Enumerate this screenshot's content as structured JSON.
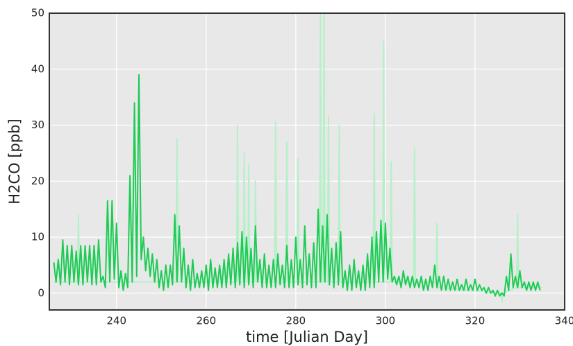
{
  "chart_data": {
    "type": "line",
    "xlabel": "time [Julian Day]",
    "ylabel": "H2CO [ppb]",
    "xlim": [
      225,
      340
    ],
    "ylim": [
      -3,
      50
    ],
    "xticks": [
      240,
      260,
      280,
      300,
      320,
      340
    ],
    "yticks": [
      0,
      10,
      20,
      30,
      40,
      50
    ],
    "grid": true,
    "series": [
      {
        "color": "#b5f0c8",
        "x": [
          226,
          231.3,
          231.5,
          231.7,
          253.3,
          253.5,
          253.7,
          266.8,
          267,
          267.2,
          268.3,
          268.5,
          268.7,
          269.3,
          269.5,
          269.7,
          270.8,
          271,
          271.2,
          275.3,
          275.5,
          275.7,
          277.8,
          278,
          278.2,
          280.3,
          280.5,
          280.7,
          285.3,
          285.5,
          285.7,
          286.1,
          286.3,
          286.5,
          287.1,
          287.3,
          287.5,
          289.5,
          289.7,
          289.9,
          297.3,
          297.5,
          297.7,
          299.4,
          299.6,
          299.8,
          301.1,
          301.3,
          301.5,
          306.3,
          306.5,
          306.7,
          311.3,
          311.5,
          311.7,
          325.8,
          326,
          326.2,
          329.3,
          329.5,
          329.7,
          335
        ],
        "values": [
          2,
          2,
          14,
          2,
          2,
          27.5,
          2,
          2,
          30,
          2,
          2,
          25,
          2,
          2,
          23,
          2,
          2,
          20,
          2,
          2,
          30.5,
          2,
          2,
          27,
          2,
          2,
          24,
          2,
          2,
          50,
          2,
          2,
          50,
          2,
          2,
          31.5,
          2,
          2,
          30,
          2,
          2,
          32,
          2,
          2,
          45,
          2,
          2,
          23.5,
          2,
          2,
          26,
          2,
          2,
          12.5,
          1,
          0,
          -1.5,
          0,
          1,
          14,
          1,
          1
        ]
      },
      {
        "color": "#1ecb55",
        "x": [
          226,
          226.5,
          227,
          227.5,
          228,
          228.5,
          229,
          229.5,
          230,
          230.5,
          231,
          231.5,
          232,
          232.5,
          233,
          233.5,
          234,
          234.5,
          235,
          235.5,
          236,
          236.5,
          237,
          237.5,
          238,
          238.5,
          239,
          239.5,
          240,
          240.5,
          241,
          241.5,
          242,
          242.5,
          243,
          243.5,
          244,
          244.5,
          245,
          245.5,
          246,
          246.5,
          247,
          247.5,
          248,
          248.5,
          249,
          249.5,
          250,
          250.5,
          251,
          251.5,
          252,
          252.5,
          253,
          253.5,
          254,
          254.5,
          255,
          255.5,
          256,
          256.5,
          257,
          257.5,
          258,
          258.5,
          259,
          259.5,
          260,
          260.5,
          261,
          261.5,
          262,
          262.5,
          263,
          263.5,
          264,
          264.5,
          265,
          265.5,
          266,
          266.5,
          267,
          267.5,
          268,
          268.5,
          269,
          269.5,
          270,
          270.5,
          271,
          271.5,
          272,
          272.5,
          273,
          273.5,
          274,
          274.5,
          275,
          275.5,
          276,
          276.5,
          277,
          277.5,
          278,
          278.5,
          279,
          279.5,
          280,
          280.5,
          281,
          281.5,
          282,
          282.5,
          283,
          283.5,
          284,
          284.5,
          285,
          285.5,
          286,
          286.5,
          287,
          287.5,
          288,
          288.5,
          289,
          289.5,
          290,
          290.5,
          291,
          291.5,
          292,
          292.5,
          293,
          293.5,
          294,
          294.5,
          295,
          295.5,
          296,
          296.5,
          297,
          297.5,
          298,
          298.5,
          299,
          299.5,
          300,
          300.5,
          301,
          301.5,
          302,
          302.5,
          303,
          303.5,
          304,
          304.5,
          305,
          305.5,
          306,
          306.5,
          307,
          307.5,
          308,
          308.5,
          309,
          309.5,
          310,
          310.5,
          311,
          311.5,
          312,
          312.5,
          313,
          313.5,
          314,
          314.5,
          315,
          315.5,
          316,
          316.5,
          317,
          317.5,
          318,
          318.5,
          319,
          319.5,
          320,
          320.5,
          321,
          321.5,
          322,
          322.5,
          323,
          323.5,
          324,
          324.5,
          325,
          325.5,
          326,
          326.5,
          327,
          327.5,
          328,
          328.5,
          329,
          329.5,
          330,
          330.5,
          331,
          331.5,
          332,
          332.5,
          333,
          333.5,
          334,
          334.5
        ],
        "values": [
          5.5,
          2,
          6,
          1.5,
          9.5,
          2,
          8.5,
          1.5,
          8.5,
          2,
          7.5,
          1.5,
          8.5,
          1.5,
          8.5,
          2,
          8.5,
          1.5,
          8.5,
          1.5,
          9.5,
          2,
          3,
          1,
          16.5,
          2,
          16.5,
          2.5,
          12.5,
          1,
          4,
          0.5,
          3.5,
          1,
          21,
          2,
          34,
          3,
          39,
          6,
          10,
          4,
          8,
          3,
          7,
          2,
          6,
          1,
          4,
          0.5,
          5,
          1,
          5,
          1.5,
          14,
          2,
          12,
          2,
          8,
          1,
          5,
          0.5,
          6,
          1,
          3.5,
          1,
          4,
          1,
          5,
          0.5,
          6,
          1,
          4.5,
          1,
          5,
          1,
          6,
          1,
          7,
          1.5,
          8,
          1,
          9,
          1.5,
          11,
          1,
          10,
          1.5,
          8,
          1,
          12,
          2,
          6,
          1,
          7,
          1,
          5,
          1,
          6,
          1,
          7,
          1.5,
          5,
          1,
          8.5,
          1,
          6,
          1,
          10,
          1.5,
          6,
          1,
          12,
          1.5,
          7,
          1,
          9,
          1,
          15,
          2,
          12,
          2,
          14,
          1.5,
          8,
          1,
          9,
          1.5,
          11,
          1,
          4,
          0.5,
          5,
          0.5,
          6,
          1,
          4,
          0.5,
          5,
          0.5,
          7,
          1,
          10,
          1,
          11,
          2,
          13,
          2,
          12.5,
          2.5,
          8,
          2,
          3,
          1.5,
          3,
          1,
          4,
          1.5,
          3,
          1,
          3,
          1,
          2.5,
          1,
          3,
          0.5,
          2.5,
          0.5,
          3,
          1,
          5,
          1,
          3,
          0.5,
          3,
          0.5,
          2.5,
          0.5,
          2,
          0.5,
          2.5,
          0.5,
          1.5,
          0.5,
          2.5,
          0.5,
          1.5,
          0.5,
          2.5,
          0.5,
          1.5,
          0.5,
          1,
          0,
          1,
          0,
          0.5,
          -0.5,
          0.5,
          -0.5,
          0,
          -0.5,
          3,
          0.5,
          7,
          1,
          3,
          1,
          4,
          1,
          2,
          0.5,
          2,
          0.5,
          2,
          0.5,
          2,
          0.5
        ]
      }
    ]
  }
}
